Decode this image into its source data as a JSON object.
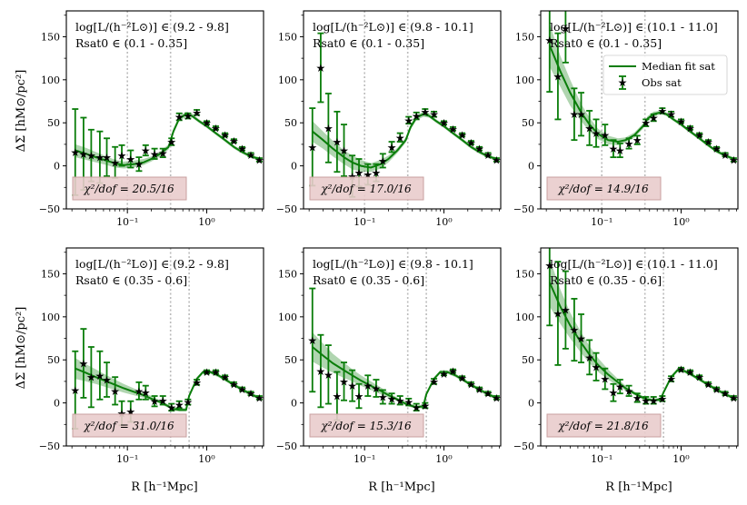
{
  "figure": {
    "shared_ylabel": "ΔΣ [hM⊙/pc²]",
    "shared_xlabel": "R [h⁻¹Mpc]",
    "legend": {
      "placement": "upper-right of top-right panel",
      "fit_label": "Median fit sat",
      "obs_label": "Obs sat"
    },
    "colors": {
      "line": "#0a7d0a",
      "band": "#0a7d0a",
      "chi_box_fill": "#e9cccc",
      "chi_box_edge": "#c9a0a0",
      "vline": "#bbbbbb"
    }
  },
  "chart_data": [
    {
      "type": "scatter",
      "panel": "top-left",
      "row": 0,
      "col": 0,
      "title": "",
      "xscale": "log",
      "xlim": [
        0.017,
        5.2
      ],
      "ylim": [
        -50,
        180
      ],
      "xticks": [
        "10⁻¹",
        "10⁰"
      ],
      "yticks": [
        "−50",
        "0",
        "50",
        "100",
        "150"
      ],
      "annotation_lum": "log[L/(h⁻²L⊙)] ∈ (9.2 - 9.8]",
      "annotation_r": "Rsat0 ∈ (0.1 - 0.35]",
      "chi2": "χ²/dof = 20.5/16",
      "vlines": [
        0.1,
        0.35
      ],
      "obs": {
        "x": [
          0.022,
          0.028,
          0.035,
          0.045,
          0.055,
          0.07,
          0.085,
          0.11,
          0.14,
          0.17,
          0.22,
          0.28,
          0.36,
          0.45,
          0.58,
          0.75,
          1.0,
          1.3,
          1.7,
          2.2,
          2.8,
          3.6,
          4.6
        ],
        "y": [
          16,
          14,
          12,
          10,
          10,
          4,
          12,
          8,
          2,
          18,
          14,
          15,
          28,
          57,
          58,
          62,
          50,
          44,
          36,
          29,
          20,
          13,
          7
        ],
        "err": [
          50,
          42,
          30,
          30,
          22,
          18,
          12,
          10,
          8,
          6,
          6,
          5,
          4,
          4,
          3,
          3,
          2,
          2,
          2,
          2,
          2,
          2,
          2
        ]
      },
      "fit": {
        "x": [
          0.022,
          0.03,
          0.04,
          0.055,
          0.07,
          0.09,
          0.12,
          0.16,
          0.2,
          0.26,
          0.33,
          0.38,
          0.45,
          0.55,
          0.65,
          0.8,
          1.0,
          1.3,
          1.7,
          2.2,
          2.8,
          3.6,
          4.6
        ],
        "y": [
          18,
          14,
          10,
          6,
          3,
          1,
          2,
          4,
          8,
          14,
          22,
          40,
          55,
          60,
          58,
          52,
          46,
          38,
          30,
          22,
          16,
          11,
          8
        ],
        "lo": [
          10,
          7,
          4,
          1,
          -2,
          -3,
          -2,
          1,
          5,
          11,
          19,
          37,
          52,
          57,
          56,
          50,
          44,
          36,
          28,
          20,
          14,
          9,
          6
        ],
        "hi": [
          25,
          21,
          16,
          11,
          7,
          5,
          6,
          8,
          11,
          17,
          25,
          43,
          58,
          63,
          61,
          54,
          48,
          40,
          32,
          24,
          18,
          13,
          10
        ]
      }
    },
    {
      "type": "scatter",
      "panel": "top-middle",
      "row": 0,
      "col": 1,
      "title": "",
      "xscale": "log",
      "xlim": [
        0.017,
        5.2
      ],
      "ylim": [
        -50,
        180
      ],
      "xticks": [
        "10⁻¹",
        "10⁰"
      ],
      "yticks": [
        "−50",
        "0",
        "50",
        "100",
        "150"
      ],
      "annotation_lum": "log[L/(h⁻²L⊙)] ∈ (9.8 - 10.1]",
      "annotation_r": "Rsat0 ∈ (0.1 - 0.35]",
      "chi2": "χ²/dof = 17.0/16",
      "vlines": [
        0.1,
        0.35
      ],
      "obs": {
        "x": [
          0.022,
          0.028,
          0.035,
          0.045,
          0.055,
          0.07,
          0.085,
          0.11,
          0.14,
          0.17,
          0.22,
          0.28,
          0.36,
          0.45,
          0.58,
          0.75,
          1.0,
          1.3,
          1.7,
          2.2,
          2.8,
          3.6,
          4.6
        ],
        "y": [
          22,
          114,
          44,
          28,
          18,
          -12,
          -8,
          -10,
          -8,
          6,
          22,
          33,
          53,
          58,
          63,
          60,
          50,
          43,
          36,
          27,
          20,
          13,
          7
        ],
        "err": [
          45,
          40,
          40,
          35,
          30,
          24,
          16,
          12,
          10,
          8,
          6,
          5,
          4,
          4,
          3,
          3,
          2,
          2,
          2,
          2,
          2,
          2,
          2
        ]
      },
      "fit": {
        "x": [
          0.022,
          0.03,
          0.04,
          0.055,
          0.07,
          0.09,
          0.12,
          0.16,
          0.2,
          0.26,
          0.33,
          0.38,
          0.45,
          0.55,
          0.65,
          0.8,
          1.0,
          1.3,
          1.7,
          2.2,
          2.8,
          3.6,
          4.6
        ],
        "y": [
          40,
          30,
          20,
          10,
          4,
          0,
          -2,
          2,
          8,
          18,
          30,
          45,
          56,
          60,
          58,
          52,
          46,
          38,
          30,
          22,
          16,
          11,
          8
        ],
        "lo": [
          28,
          20,
          11,
          2,
          -4,
          -7,
          -7,
          -3,
          4,
          15,
          27,
          42,
          53,
          57,
          56,
          50,
          44,
          36,
          28,
          20,
          14,
          9,
          6
        ],
        "hi": [
          52,
          40,
          29,
          18,
          12,
          7,
          3,
          7,
          12,
          21,
          33,
          48,
          59,
          63,
          61,
          54,
          48,
          40,
          32,
          24,
          18,
          13,
          10
        ]
      }
    },
    {
      "type": "scatter",
      "panel": "top-right",
      "row": 0,
      "col": 2,
      "title": "",
      "xscale": "log",
      "xlim": [
        0.017,
        5.2
      ],
      "ylim": [
        -50,
        180
      ],
      "xticks": [
        "10⁻¹",
        "10⁰"
      ],
      "yticks": [
        "−50",
        "0",
        "50",
        "100",
        "150"
      ],
      "annotation_lum": "log[L/(h⁻²L⊙)] ∈ (10.1 - 11.0]",
      "annotation_r": "Rsat0 ∈ (0.1 - 0.35]",
      "chi2": "χ²/dof = 14.9/16",
      "vlines": [
        0.1,
        0.35
      ],
      "obs": {
        "x": [
          0.022,
          0.028,
          0.035,
          0.045,
          0.055,
          0.07,
          0.085,
          0.11,
          0.14,
          0.17,
          0.22,
          0.28,
          0.36,
          0.45,
          0.58,
          0.75,
          1.0,
          1.3,
          1.7,
          2.2,
          2.8,
          3.6,
          4.6
        ],
        "y": [
          146,
          104,
          160,
          60,
          60,
          44,
          38,
          36,
          20,
          18,
          26,
          30,
          50,
          56,
          64,
          60,
          52,
          44,
          36,
          28,
          20,
          13,
          7
        ],
        "err": [
          60,
          50,
          40,
          30,
          25,
          20,
          16,
          12,
          10,
          8,
          6,
          5,
          4,
          4,
          3,
          3,
          2,
          2,
          2,
          2,
          2,
          2,
          2
        ]
      },
      "fit": {
        "x": [
          0.022,
          0.03,
          0.04,
          0.055,
          0.07,
          0.09,
          0.12,
          0.16,
          0.2,
          0.26,
          0.33,
          0.38,
          0.45,
          0.55,
          0.65,
          0.8,
          1.0,
          1.3,
          1.7,
          2.2,
          2.8,
          3.6,
          4.6
        ],
        "y": [
          140,
          110,
          85,
          62,
          48,
          37,
          30,
          28,
          30,
          36,
          46,
          55,
          60,
          62,
          60,
          54,
          48,
          40,
          32,
          24,
          17,
          12,
          8
        ],
        "lo": [
          115,
          92,
          70,
          52,
          40,
          31,
          25,
          24,
          27,
          33,
          43,
          52,
          57,
          60,
          58,
          52,
          46,
          38,
          30,
          22,
          15,
          10,
          6
        ],
        "hi": [
          165,
          128,
          100,
          72,
          56,
          43,
          35,
          32,
          33,
          39,
          49,
          58,
          63,
          64,
          62,
          56,
          50,
          42,
          34,
          26,
          19,
          14,
          10
        ]
      }
    },
    {
      "type": "scatter",
      "panel": "bottom-left",
      "row": 1,
      "col": 0,
      "title": "",
      "xscale": "log",
      "xlim": [
        0.017,
        5.2
      ],
      "ylim": [
        -50,
        180
      ],
      "xticks": [
        "10⁻¹",
        "10⁰"
      ],
      "yticks": [
        "−50",
        "0",
        "50",
        "100",
        "150"
      ],
      "annotation_lum": "log[L/(h⁻²L⊙)] ∈ (9.2 - 9.8]",
      "annotation_r": "Rsat0 ∈ (0.35 - 0.6]",
      "chi2": "χ²/dof = 31.0/16",
      "vlines": [
        0.35,
        0.6
      ],
      "obs": {
        "x": [
          0.022,
          0.028,
          0.035,
          0.045,
          0.055,
          0.07,
          0.085,
          0.11,
          0.14,
          0.17,
          0.22,
          0.28,
          0.36,
          0.45,
          0.58,
          0.75,
          1.0,
          1.3,
          1.7,
          2.2,
          2.8,
          3.6,
          4.6
        ],
        "y": [
          15,
          46,
          30,
          32,
          27,
          14,
          -12,
          -10,
          14,
          12,
          2,
          3,
          -5,
          -2,
          1,
          24,
          36,
          36,
          30,
          22,
          16,
          11,
          6
        ],
        "err": [
          45,
          40,
          35,
          28,
          20,
          16,
          14,
          12,
          10,
          8,
          6,
          5,
          4,
          4,
          3,
          3,
          2,
          2,
          2,
          2,
          2,
          2,
          2
        ]
      },
      "fit": {
        "x": [
          0.022,
          0.03,
          0.04,
          0.055,
          0.07,
          0.09,
          0.12,
          0.16,
          0.2,
          0.26,
          0.33,
          0.38,
          0.45,
          0.55,
          0.6,
          0.75,
          0.9,
          1.1,
          1.4,
          1.8,
          2.3,
          3.0,
          3.8,
          4.6
        ],
        "y": [
          40,
          35,
          30,
          25,
          21,
          17,
          13,
          9,
          5,
          1,
          -4,
          -7,
          -8,
          -8,
          8,
          28,
          36,
          36,
          32,
          26,
          20,
          14,
          9,
          6
        ],
        "lo": [
          28,
          25,
          22,
          18,
          15,
          12,
          9,
          6,
          3,
          -1,
          -6,
          -9,
          -10,
          -10,
          6,
          26,
          34,
          34,
          30,
          24,
          18,
          12,
          7,
          4
        ],
        "hi": [
          52,
          45,
          39,
          32,
          27,
          22,
          17,
          12,
          8,
          3,
          -2,
          -5,
          -6,
          -6,
          10,
          30,
          38,
          38,
          34,
          28,
          22,
          16,
          11,
          8
        ]
      }
    },
    {
      "type": "scatter",
      "panel": "bottom-middle",
      "row": 1,
      "col": 1,
      "title": "",
      "xscale": "log",
      "xlim": [
        0.017,
        5.2
      ],
      "ylim": [
        -50,
        180
      ],
      "xticks": [
        "10⁻¹",
        "10⁰"
      ],
      "yticks": [
        "−50",
        "0",
        "50",
        "100",
        "150"
      ],
      "annotation_lum": "log[L/(h⁻²L⊙)] ∈ (9.8 - 10.1]",
      "annotation_r": "Rsat0 ∈ (0.35 - 0.6]",
      "chi2": "χ²/dof = 15.3/16",
      "vlines": [
        0.35,
        0.6
      ],
      "obs": {
        "x": [
          0.022,
          0.028,
          0.035,
          0.045,
          0.055,
          0.07,
          0.085,
          0.11,
          0.14,
          0.17,
          0.22,
          0.28,
          0.36,
          0.45,
          0.58,
          0.75,
          1.0,
          1.3,
          1.7,
          2.2,
          2.8,
          3.6,
          4.6
        ],
        "y": [
          73,
          37,
          33,
          8,
          25,
          20,
          8,
          20,
          17,
          7,
          5,
          3,
          1,
          -5,
          -3,
          25,
          34,
          37,
          29,
          22,
          16,
          11,
          6
        ],
        "err": [
          60,
          42,
          34,
          28,
          22,
          18,
          14,
          12,
          10,
          8,
          6,
          5,
          4,
          4,
          3,
          3,
          2,
          2,
          2,
          2,
          2,
          2,
          2
        ]
      },
      "fit": {
        "x": [
          0.022,
          0.03,
          0.04,
          0.055,
          0.07,
          0.09,
          0.12,
          0.16,
          0.2,
          0.26,
          0.33,
          0.38,
          0.45,
          0.55,
          0.6,
          0.75,
          0.9,
          1.1,
          1.4,
          1.8,
          2.3,
          3.0,
          3.8,
          4.6
        ],
        "y": [
          65,
          55,
          46,
          38,
          32,
          26,
          20,
          14,
          9,
          4,
          -1,
          -3,
          -5,
          -4,
          10,
          28,
          36,
          36,
          32,
          26,
          20,
          14,
          9,
          6
        ],
        "lo": [
          48,
          41,
          35,
          29,
          25,
          20,
          15,
          10,
          6,
          2,
          -3,
          -5,
          -7,
          -6,
          8,
          26,
          34,
          34,
          30,
          24,
          18,
          12,
          7,
          4
        ],
        "hi": [
          82,
          69,
          57,
          47,
          39,
          32,
          25,
          18,
          12,
          6,
          1,
          -1,
          -3,
          -2,
          12,
          30,
          38,
          38,
          34,
          28,
          22,
          16,
          11,
          8
        ]
      }
    },
    {
      "type": "scatter",
      "panel": "bottom-right",
      "row": 1,
      "col": 2,
      "title": "",
      "xscale": "log",
      "xlim": [
        0.017,
        5.2
      ],
      "ylim": [
        -50,
        180
      ],
      "xticks": [
        "10⁻¹",
        "10⁰"
      ],
      "yticks": [
        "−50",
        "0",
        "50",
        "100",
        "150"
      ],
      "annotation_lum": "log[L/(h⁻²L⊙)] ∈ (10.1 - 11.0]",
      "annotation_r": "Rsat0 ∈ (0.35 - 0.6]",
      "chi2": "χ²/dof = 21.8/16",
      "vlines": [
        0.35,
        0.6
      ],
      "obs": {
        "x": [
          0.022,
          0.028,
          0.035,
          0.045,
          0.055,
          0.07,
          0.085,
          0.11,
          0.14,
          0.17,
          0.22,
          0.28,
          0.36,
          0.45,
          0.58,
          0.75,
          1.0,
          1.3,
          1.7,
          2.2,
          2.8,
          3.6,
          4.6
        ],
        "y": [
          160,
          104,
          108,
          85,
          75,
          53,
          42,
          28,
          12,
          19,
          14,
          6,
          3,
          3,
          5,
          28,
          39,
          36,
          30,
          22,
          16,
          11,
          6
        ],
        "err": [
          70,
          60,
          45,
          36,
          28,
          20,
          16,
          12,
          10,
          8,
          6,
          5,
          4,
          4,
          3,
          3,
          2,
          2,
          2,
          2,
          2,
          2,
          2
        ]
      },
      "fit": {
        "x": [
          0.022,
          0.03,
          0.04,
          0.055,
          0.07,
          0.09,
          0.12,
          0.16,
          0.2,
          0.26,
          0.33,
          0.38,
          0.45,
          0.55,
          0.6,
          0.75,
          0.9,
          1.1,
          1.4,
          1.8,
          2.3,
          3.0,
          3.8,
          4.6
        ],
        "y": [
          140,
          112,
          90,
          70,
          56,
          44,
          33,
          24,
          17,
          11,
          6,
          4,
          3,
          4,
          12,
          30,
          38,
          37,
          32,
          26,
          20,
          14,
          9,
          6
        ],
        "lo": [
          112,
          92,
          75,
          58,
          46,
          36,
          27,
          20,
          14,
          9,
          4,
          2,
          1,
          2,
          10,
          28,
          36,
          35,
          30,
          24,
          18,
          12,
          7,
          4
        ],
        "hi": [
          168,
          132,
          105,
          82,
          66,
          52,
          39,
          28,
          20,
          13,
          8,
          6,
          5,
          6,
          14,
          32,
          40,
          39,
          34,
          28,
          22,
          16,
          11,
          8
        ]
      }
    }
  ]
}
